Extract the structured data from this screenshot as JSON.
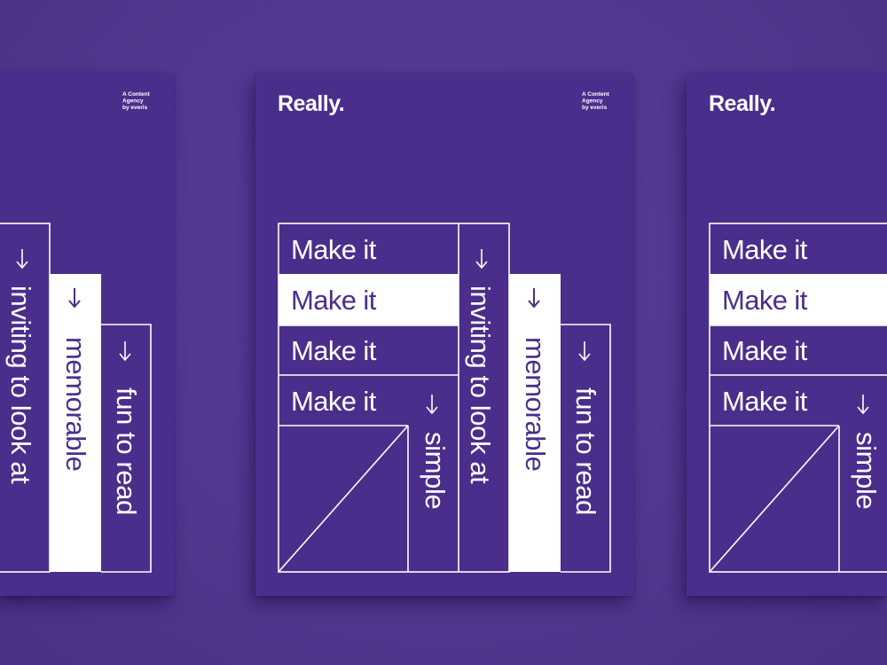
{
  "colors": {
    "background": "#553894",
    "poster": "#4b2e8b",
    "ink": "#ffffff"
  },
  "poster": {
    "title": "Really.",
    "agency": [
      "A Content",
      "Agency",
      "by everis"
    ],
    "rows": [
      "Make it",
      "Make it",
      "Make it",
      "Make it"
    ],
    "columns": {
      "simple": "simple",
      "inviting": "inviting to look at",
      "memorable": "memorable",
      "fun": "fun to read"
    },
    "arrow_icon": "arrow-down-icon"
  }
}
